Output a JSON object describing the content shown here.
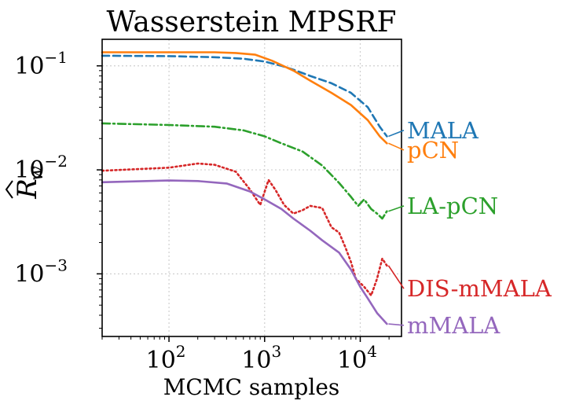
{
  "chart_data": {
    "type": "line",
    "title": "Wasserstein MPSRF",
    "xlabel": "MCMC samples",
    "ylabel": "R̂_w",
    "x_scale": "log",
    "y_scale": "log",
    "xlim": [
      20,
      27000
    ],
    "ylim": [
      0.00025,
      0.18
    ],
    "grid": true,
    "xticks": [
      {
        "base": "10",
        "exp": "2",
        "value": 100
      },
      {
        "base": "10",
        "exp": "3",
        "value": 1000
      },
      {
        "base": "10",
        "exp": "4",
        "value": 10000
      }
    ],
    "yticks": [
      {
        "base": "10",
        "exp": "−1",
        "value": 0.1
      },
      {
        "base": "10",
        "exp": "−2",
        "value": 0.01
      },
      {
        "base": "10",
        "exp": "−3",
        "value": 0.001
      }
    ],
    "series": [
      {
        "name": "MALA",
        "color": "#1f77b4",
        "dash": "dashed",
        "label_y": 0.024,
        "points": [
          [
            20,
            0.125
          ],
          [
            100,
            0.124
          ],
          [
            300,
            0.121
          ],
          [
            600,
            0.117
          ],
          [
            1000,
            0.11
          ],
          [
            1500,
            0.1
          ],
          [
            2000,
            0.092
          ],
          [
            3000,
            0.08
          ],
          [
            5000,
            0.068
          ],
          [
            8000,
            0.055
          ],
          [
            12000,
            0.04
          ],
          [
            16000,
            0.026
          ],
          [
            19000,
            0.021
          ]
        ]
      },
      {
        "name": "pCN",
        "color": "#ff7f0e",
        "dash": "solid",
        "label_y": 0.0155,
        "points": [
          [
            20,
            0.135
          ],
          [
            100,
            0.135
          ],
          [
            300,
            0.135
          ],
          [
            500,
            0.133
          ],
          [
            800,
            0.128
          ],
          [
            1200,
            0.112
          ],
          [
            2000,
            0.09
          ],
          [
            3000,
            0.072
          ],
          [
            5000,
            0.055
          ],
          [
            8000,
            0.042
          ],
          [
            12000,
            0.03
          ],
          [
            16000,
            0.021
          ],
          [
            19000,
            0.018
          ]
        ]
      },
      {
        "name": "LA-pCN",
        "color": "#2ca02c",
        "dash": "dashdot",
        "label_y": 0.0045,
        "points": [
          [
            20,
            0.028
          ],
          [
            100,
            0.027
          ],
          [
            300,
            0.026
          ],
          [
            600,
            0.024
          ],
          [
            1000,
            0.021
          ],
          [
            1500,
            0.018
          ],
          [
            2500,
            0.015
          ],
          [
            4000,
            0.011
          ],
          [
            6000,
            0.0075
          ],
          [
            8000,
            0.0055
          ],
          [
            9500,
            0.0045
          ],
          [
            11000,
            0.0052
          ],
          [
            13000,
            0.0042
          ],
          [
            15000,
            0.0038
          ],
          [
            17000,
            0.0034
          ],
          [
            19000,
            0.004
          ]
        ]
      },
      {
        "name": "DIS-mMALA",
        "color": "#d62728",
        "dash": "dotted",
        "label_y": 0.00072,
        "points": [
          [
            20,
            0.0098
          ],
          [
            100,
            0.0105
          ],
          [
            200,
            0.0115
          ],
          [
            300,
            0.0112
          ],
          [
            500,
            0.0096
          ],
          [
            700,
            0.0065
          ],
          [
            900,
            0.0046
          ],
          [
            1100,
            0.008
          ],
          [
            1300,
            0.0064
          ],
          [
            1600,
            0.0046
          ],
          [
            2000,
            0.0038
          ],
          [
            2500,
            0.0041
          ],
          [
            3000,
            0.0045
          ],
          [
            4000,
            0.0043
          ],
          [
            5000,
            0.0028
          ],
          [
            6000,
            0.0025
          ],
          [
            7000,
            0.0018
          ],
          [
            8000,
            0.0013
          ],
          [
            9000,
            0.0009
          ],
          [
            11000,
            0.00075
          ],
          [
            13000,
            0.00062
          ],
          [
            15000,
            0.0009
          ],
          [
            17000,
            0.0014
          ],
          [
            19000,
            0.0012
          ]
        ]
      },
      {
        "name": "mMALA",
        "color": "#9467bd",
        "dash": "solid",
        "label_y": 0.00032,
        "points": [
          [
            20,
            0.0076
          ],
          [
            100,
            0.0079
          ],
          [
            200,
            0.0078
          ],
          [
            400,
            0.0074
          ],
          [
            700,
            0.0062
          ],
          [
            1000,
            0.0052
          ],
          [
            1500,
            0.0042
          ],
          [
            2000,
            0.0034
          ],
          [
            3000,
            0.0026
          ],
          [
            4000,
            0.0021
          ],
          [
            6000,
            0.0016
          ],
          [
            8000,
            0.0011
          ],
          [
            10000,
            0.00075
          ],
          [
            12000,
            0.00058
          ],
          [
            15000,
            0.00042
          ],
          [
            19000,
            0.00033
          ]
        ]
      }
    ]
  }
}
